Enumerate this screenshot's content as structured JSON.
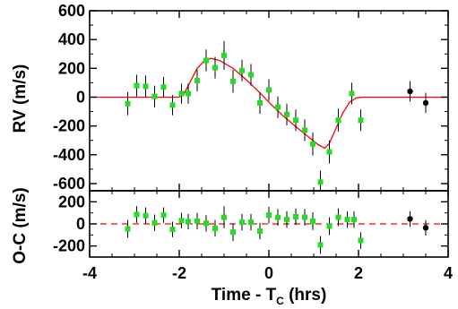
{
  "chart_data": [
    {
      "type": "scatter",
      "panel": "rv",
      "xlabel": "",
      "ylabel": "RV (m/s)",
      "xlim": [
        -4,
        4
      ],
      "ylim": [
        -650,
        600
      ],
      "xticks": [
        -4,
        -2,
        0,
        2,
        4
      ],
      "xtick_labels_visible": false,
      "yticks": [
        -600,
        -400,
        -200,
        0,
        200,
        400,
        600
      ],
      "ytick_labels": [
        "-600",
        "-400",
        "-200",
        "0",
        "200",
        "400",
        "600"
      ],
      "grid": false,
      "legend": "none",
      "series": [
        {
          "marker": "square",
          "color": "#22dd22",
          "points": [
            {
              "x": -3.15,
              "y": -45,
              "err": 80
            },
            {
              "x": -2.95,
              "y": 80,
              "err": 75
            },
            {
              "x": -2.75,
              "y": 75,
              "err": 75
            },
            {
              "x": -2.55,
              "y": 5,
              "err": 75
            },
            {
              "x": -2.35,
              "y": 70,
              "err": 70
            },
            {
              "x": -2.15,
              "y": -55,
              "err": 70
            },
            {
              "x": -1.95,
              "y": 25,
              "err": 70
            },
            {
              "x": -1.8,
              "y": 25,
              "err": 70
            },
            {
              "x": -1.6,
              "y": 115,
              "err": 75
            },
            {
              "x": -1.4,
              "y": 255,
              "err": 75
            },
            {
              "x": -1.2,
              "y": 205,
              "err": 75
            },
            {
              "x": -1.0,
              "y": 290,
              "err": 100
            },
            {
              "x": -0.8,
              "y": 110,
              "err": 80
            },
            {
              "x": -0.6,
              "y": 185,
              "err": 75
            },
            {
              "x": -0.4,
              "y": 155,
              "err": 75
            },
            {
              "x": -0.2,
              "y": -40,
              "err": 75
            },
            {
              "x": 0.0,
              "y": 50,
              "err": 75
            },
            {
              "x": 0.2,
              "y": -70,
              "err": 75
            },
            {
              "x": 0.4,
              "y": -120,
              "err": 75
            },
            {
              "x": 0.6,
              "y": -160,
              "err": 75
            },
            {
              "x": 0.8,
              "y": -230,
              "err": 75
            },
            {
              "x": 0.98,
              "y": -325,
              "err": 80
            },
            {
              "x": 1.15,
              "y": -590,
              "err": 80
            },
            {
              "x": 1.35,
              "y": -380,
              "err": 80
            },
            {
              "x": 1.55,
              "y": -160,
              "err": 80
            },
            {
              "x": 1.85,
              "y": 25,
              "err": 75
            },
            {
              "x": 2.05,
              "y": -160,
              "err": 75
            }
          ]
        },
        {
          "marker": "circle",
          "color": "#000000",
          "points": [
            {
              "x": 3.15,
              "y": 40,
              "err": 70
            },
            {
              "x": 3.5,
              "y": -40,
              "err": 70
            }
          ]
        },
        {
          "type": "line",
          "color": "#ff0000",
          "points": [
            {
              "x": -4.0,
              "y": 0
            },
            {
              "x": -2.0,
              "y": 0
            },
            {
              "x": -1.9,
              "y": 20
            },
            {
              "x": -1.75,
              "y": 110
            },
            {
              "x": -1.6,
              "y": 200
            },
            {
              "x": -1.45,
              "y": 250
            },
            {
              "x": -1.3,
              "y": 270
            },
            {
              "x": -1.1,
              "y": 255
            },
            {
              "x": -0.8,
              "y": 200
            },
            {
              "x": -0.5,
              "y": 120
            },
            {
              "x": -0.2,
              "y": 30
            },
            {
              "x": 0.0,
              "y": -35
            },
            {
              "x": 0.3,
              "y": -125
            },
            {
              "x": 0.6,
              "y": -205
            },
            {
              "x": 0.9,
              "y": -280
            },
            {
              "x": 1.1,
              "y": -330
            },
            {
              "x": 1.25,
              "y": -355
            },
            {
              "x": 1.35,
              "y": -320
            },
            {
              "x": 1.5,
              "y": -215
            },
            {
              "x": 1.65,
              "y": -110
            },
            {
              "x": 1.8,
              "y": -35
            },
            {
              "x": 1.95,
              "y": -5
            },
            {
              "x": 2.1,
              "y": 0
            },
            {
              "x": 4.0,
              "y": 0
            }
          ]
        }
      ]
    },
    {
      "type": "scatter",
      "panel": "residuals",
      "xlabel": "Time - T",
      "xlabel_subscript": "C",
      "xlabel_suffix": " (hrs)",
      "ylabel": "O-C (m/s)",
      "xlim": [
        -4,
        4
      ],
      "ylim": [
        -300,
        300
      ],
      "xticks": [
        -4,
        -2,
        0,
        2,
        4
      ],
      "xtick_labels": [
        "-4",
        "-2",
        "0",
        "2",
        "4"
      ],
      "yticks": [
        -200,
        0,
        200
      ],
      "ytick_labels": [
        "-200",
        "0",
        "200"
      ],
      "grid": false,
      "legend": "none",
      "reference_line": {
        "y": 0,
        "style": "dashed",
        "color": "#ff0000"
      },
      "series": [
        {
          "marker": "square",
          "color": "#22dd22",
          "points": [
            {
              "x": -3.15,
              "y": -45,
              "err": 80
            },
            {
              "x": -2.95,
              "y": 85,
              "err": 75
            },
            {
              "x": -2.75,
              "y": 75,
              "err": 75
            },
            {
              "x": -2.55,
              "y": 10,
              "err": 75
            },
            {
              "x": -2.35,
              "y": 80,
              "err": 70
            },
            {
              "x": -2.15,
              "y": -50,
              "err": 70
            },
            {
              "x": -1.95,
              "y": 30,
              "err": 70
            },
            {
              "x": -1.8,
              "y": 20,
              "err": 70
            },
            {
              "x": -1.6,
              "y": 25,
              "err": 75
            },
            {
              "x": -1.4,
              "y": 5,
              "err": 75
            },
            {
              "x": -1.2,
              "y": -40,
              "err": 75
            },
            {
              "x": -1.0,
              "y": 60,
              "err": 100
            },
            {
              "x": -0.8,
              "y": -75,
              "err": 80
            },
            {
              "x": -0.6,
              "y": 15,
              "err": 75
            },
            {
              "x": -0.4,
              "y": 15,
              "err": 75
            },
            {
              "x": -0.2,
              "y": -65,
              "err": 75
            },
            {
              "x": 0.0,
              "y": 80,
              "err": 75
            },
            {
              "x": 0.2,
              "y": 60,
              "err": 75
            },
            {
              "x": 0.4,
              "y": 40,
              "err": 75
            },
            {
              "x": 0.6,
              "y": 65,
              "err": 75
            },
            {
              "x": 0.8,
              "y": 60,
              "err": 75
            },
            {
              "x": 0.98,
              "y": 25,
              "err": 80
            },
            {
              "x": 1.15,
              "y": -190,
              "err": 80
            },
            {
              "x": 1.35,
              "y": -20,
              "err": 80
            },
            {
              "x": 1.55,
              "y": 60,
              "err": 80
            },
            {
              "x": 1.75,
              "y": 40,
              "err": 75
            },
            {
              "x": 1.9,
              "y": 40,
              "err": 75
            },
            {
              "x": 2.05,
              "y": -150,
              "err": 75
            }
          ]
        },
        {
          "marker": "circle",
          "color": "#000000",
          "points": [
            {
              "x": 3.15,
              "y": 45,
              "err": 70
            },
            {
              "x": 3.5,
              "y": -35,
              "err": 70
            }
          ]
        }
      ]
    }
  ]
}
